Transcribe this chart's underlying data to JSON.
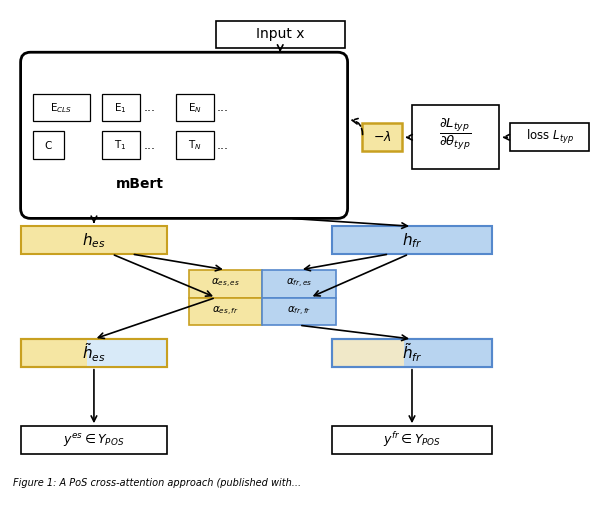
{
  "bg_color": "#ffffff",
  "orange_face": "#f5e6a3",
  "orange_edge": "#c8a020",
  "blue_face": "#b8d4f0",
  "blue_edge": "#5588cc",
  "caption": "Figure 1: A PoS cross-attention approach (published with..."
}
